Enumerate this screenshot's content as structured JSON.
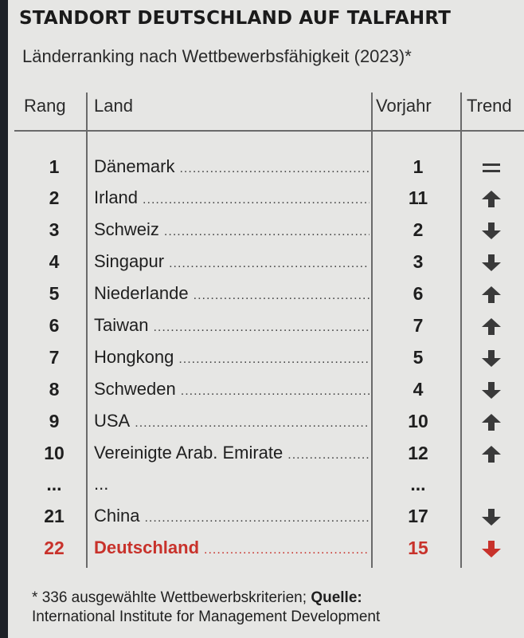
{
  "title": "STANDORT DEUTSCHLAND AUF TALFAHRT",
  "subtitle": "Länderranking nach Wettbewerbsfähigkeit (2023)*",
  "headers": {
    "rank": "Rang",
    "country": "Land",
    "previous": "Vorjahr",
    "trend": "Trend"
  },
  "dots": "..............................................................",
  "rows": [
    {
      "rank": "1",
      "country": "Dänemark",
      "previous": "1",
      "trend": "equal",
      "highlight": false
    },
    {
      "rank": "2",
      "country": "Irland",
      "previous": "11",
      "trend": "up",
      "highlight": false
    },
    {
      "rank": "3",
      "country": "Schweiz",
      "previous": "2",
      "trend": "down",
      "highlight": false
    },
    {
      "rank": "4",
      "country": "Singapur",
      "previous": "3",
      "trend": "down",
      "highlight": false
    },
    {
      "rank": "5",
      "country": "Niederlande",
      "previous": "6",
      "trend": "up",
      "highlight": false
    },
    {
      "rank": "6",
      "country": "Taiwan",
      "previous": "7",
      "trend": "up",
      "highlight": false
    },
    {
      "rank": "7",
      "country": "Hongkong",
      "previous": "5",
      "trend": "down",
      "highlight": false
    },
    {
      "rank": "8",
      "country": "Schweden",
      "previous": "4",
      "trend": "down",
      "highlight": false
    },
    {
      "rank": "9",
      "country": "USA",
      "previous": "10",
      "trend": "up",
      "highlight": false
    },
    {
      "rank": "10",
      "country": "Vereinigte Arab. Emirate",
      "previous": "12",
      "trend": "up",
      "highlight": false
    },
    {
      "rank": "...",
      "country": "...",
      "previous": "...",
      "trend": "none",
      "highlight": false
    },
    {
      "rank": "21",
      "country": "China",
      "previous": "17",
      "trend": "down",
      "highlight": false
    },
    {
      "rank": "22",
      "country": "Deutschland",
      "previous": "15",
      "trend": "down",
      "highlight": true
    }
  ],
  "colors": {
    "neutral": "#3a3a3a",
    "highlight": "#c8322b"
  },
  "footnote": {
    "marker": "*",
    "text": "336 ausgewählte Wettbewerbskriterien;",
    "source_label": "Quelle:",
    "source": "International Institute for Management Development"
  }
}
